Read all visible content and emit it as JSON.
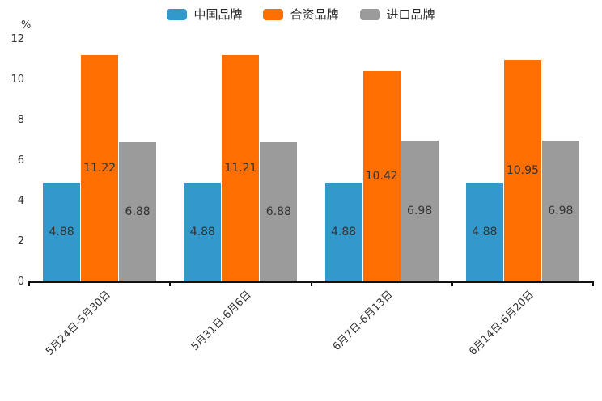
{
  "chart_data": {
    "type": "bar",
    "title": "",
    "unit_label": "%",
    "categories": [
      "5月24日-5月30日",
      "5月31日-6月6日",
      "6月7日-6月13日",
      "6月14日-6月20日"
    ],
    "series": [
      {
        "name": "中国品牌",
        "color": "#3398CC",
        "values": [
          4.88,
          4.88,
          4.88,
          4.88
        ]
      },
      {
        "name": "合资品牌",
        "color": "#FF6E00",
        "values": [
          11.22,
          11.21,
          10.42,
          10.95
        ]
      },
      {
        "name": "进口品牌",
        "color": "#9B9B9B",
        "values": [
          6.88,
          6.88,
          6.98,
          6.98
        ]
      }
    ],
    "ylim": [
      0,
      12
    ],
    "yticks": [
      0,
      2,
      4,
      6,
      8,
      10,
      12
    ],
    "legend_position": "top-center",
    "grid": false,
    "value_labels": "inside-center",
    "axis_color": "#111111",
    "text_color": "#333333",
    "background_color": "#ffffff"
  }
}
